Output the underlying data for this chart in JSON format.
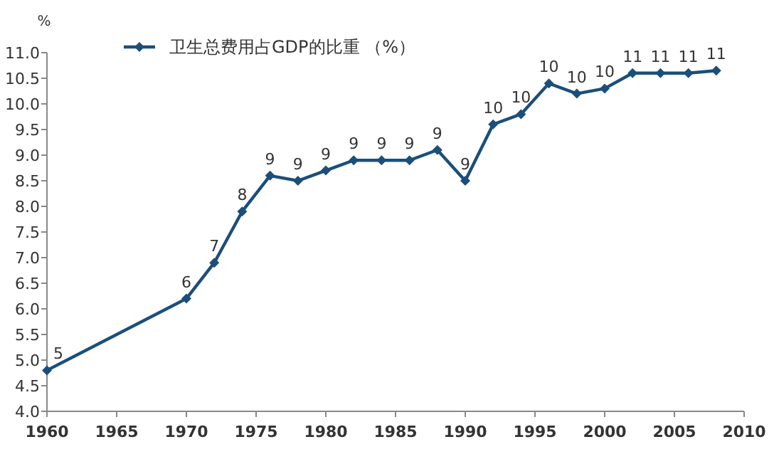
{
  "chart_data": {
    "type": "line",
    "ylabel": "%",
    "legend": "top",
    "marker": "diamond",
    "line_style": "solid",
    "grid": false,
    "x": [
      1960,
      1970,
      1972,
      1974,
      1976,
      1978,
      1980,
      1982,
      1984,
      1986,
      1988,
      1990,
      1992,
      1994,
      1996,
      1998,
      2000,
      2002,
      2004,
      2006,
      2008
    ],
    "series": [
      {
        "name": "卫生总费用占GDP的比重 （%）",
        "color": "#1b4f7a",
        "values": [
          4.8,
          6.2,
          6.9,
          7.9,
          8.6,
          8.5,
          8.7,
          8.9,
          8.9,
          8.9,
          9.1,
          8.5,
          9.6,
          9.8,
          10.4,
          10.2,
          10.3,
          10.6,
          10.6,
          10.6,
          10.65
        ],
        "value_labels": [
          "5",
          "6",
          "7",
          "8",
          "9",
          "9",
          "9",
          "9",
          "9",
          "9",
          "9",
          "9",
          "10",
          "10",
          "10",
          "10",
          "10",
          "11",
          "11",
          "11",
          "11"
        ]
      }
    ],
    "xlim": [
      1960,
      2010
    ],
    "xticks": [
      1960,
      1965,
      1970,
      1975,
      1980,
      1985,
      1990,
      1995,
      2000,
      2005,
      2010
    ],
    "ylim": [
      4.0,
      11.0
    ],
    "yticks": [
      {
        "value": 4.0,
        "label": "4.0"
      },
      {
        "value": 4.5,
        "label": "4.5"
      },
      {
        "value": 5.0,
        "label": "5.0"
      },
      {
        "value": 5.5,
        "label": "5.5"
      },
      {
        "value": 6.0,
        "label": "6.0"
      },
      {
        "value": 6.5,
        "label": "6.5"
      },
      {
        "value": 7.0,
        "label": "7.0"
      },
      {
        "value": 7.5,
        "label": "7.5"
      },
      {
        "value": 8.0,
        "label": "8.0"
      },
      {
        "value": 8.5,
        "label": "8.5"
      },
      {
        "value": 9.0,
        "label": "9.0"
      },
      {
        "value": 9.5,
        "label": "9.5"
      },
      {
        "value": 10.0,
        "label": "10.0"
      },
      {
        "value": 10.5,
        "label": "10.5"
      },
      {
        "value": 11.0,
        "label": "11.0"
      }
    ]
  }
}
